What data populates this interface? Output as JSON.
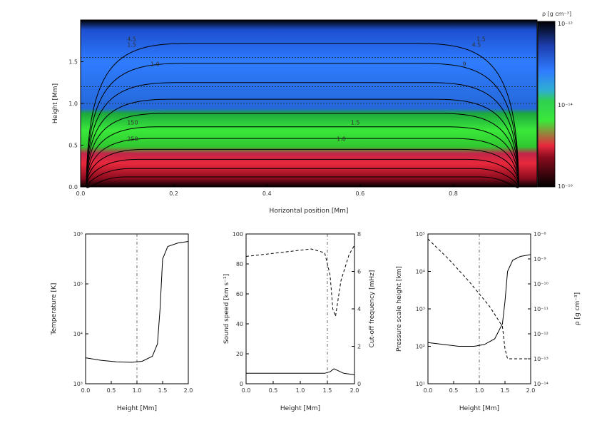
{
  "chart_data": [
    {
      "type": "heatmap",
      "id": "density-map",
      "xlabel": "Horizontal position [Mm]",
      "ylabel": "Height [Mm]",
      "xlim": [
        0.0,
        0.98
      ],
      "ylim": [
        0.0,
        2.0
      ],
      "x_ticks": [
        0.0,
        0.2,
        0.4,
        0.6,
        0.8
      ],
      "x_tick_labels": [
        "0.0",
        "0.2",
        "0.4",
        "0.6",
        "0.8"
      ],
      "y_ticks": [
        0.0,
        0.5,
        1.0,
        1.5
      ],
      "y_tick_labels": [
        "0.0",
        "0.5",
        "1.0",
        "1.5"
      ],
      "colorbar": {
        "label": "ρ [g cm⁻³]",
        "tick_labels": [
          "10⁻¹²",
          "10⁻¹⁴",
          "10⁻¹⁶"
        ],
        "colors": [
          "#000000",
          "#d81e3c",
          "#27d43a",
          "#2f6fff",
          "#000000"
        ]
      },
      "color_regions": [
        {
          "from": 0.0,
          "to": 0.35,
          "color": "red"
        },
        {
          "from": 0.35,
          "to": 1.0,
          "color": "green"
        },
        {
          "from": 1.0,
          "to": 2.0,
          "color": "blue"
        }
      ],
      "contour_labels": [
        "4.5",
        "1.5",
        "1.0",
        "150",
        "250",
        "1.5",
        "4.5",
        "9",
        "1.5",
        "1.0"
      ],
      "horizontal_dashed_levels": [
        1.55,
        1.2,
        1.0
      ]
    },
    {
      "type": "line",
      "id": "temperature",
      "xlabel": "Height [Mm]",
      "ylabel": "Temperature [K]",
      "xlim": [
        0.0,
        2.0
      ],
      "ylim_log10": [
        3,
        6
      ],
      "x_tick_labels": [
        "0.0",
        "0.5",
        "1.0",
        "1.5",
        "2.0"
      ],
      "y_tick_labels": [
        "10³",
        "10⁴",
        "10⁵",
        "10⁶"
      ],
      "vline_x": 1.0,
      "series": [
        {
          "x": [
            0.0,
            0.3,
            0.6,
            0.9,
            1.1,
            1.3,
            1.4,
            1.45,
            1.5,
            1.6,
            1.8,
            2.0
          ],
          "log10y": [
            3.52,
            3.47,
            3.44,
            3.43,
            3.45,
            3.55,
            3.8,
            4.5,
            5.5,
            5.75,
            5.82,
            5.85
          ]
        }
      ]
    },
    {
      "type": "line",
      "id": "sound-speed",
      "xlabel": "Height [Mm]",
      "ylabel": "Sound speed [km s⁻¹]",
      "y2label": "Cut-off frequency [mHz]",
      "xlim": [
        0.0,
        2.0
      ],
      "ylim": [
        0,
        100
      ],
      "y2lim": [
        0,
        8
      ],
      "x_tick_labels": [
        "0.0",
        "0.5",
        "1.0",
        "1.5",
        "2.0"
      ],
      "y_tick_labels": [
        "0",
        "20",
        "40",
        "60",
        "80",
        "100"
      ],
      "y2_tick_labels": [
        "0",
        "2",
        "4",
        "6",
        "8"
      ],
      "vline_x": 1.5,
      "series": [
        {
          "axis": "left",
          "x": [
            0.0,
            0.5,
            1.0,
            1.45,
            1.55,
            1.62,
            1.68,
            1.8,
            2.0
          ],
          "y": [
            7,
            7,
            7,
            7,
            8,
            10,
            9,
            7,
            6
          ]
        },
        {
          "axis": "right",
          "x": [
            0.0,
            0.6,
            1.2,
            1.45,
            1.55,
            1.6,
            1.65,
            1.75,
            1.9,
            2.0
          ],
          "y": [
            6.8,
            7.0,
            7.2,
            7.0,
            5.8,
            4.0,
            3.6,
            5.5,
            6.9,
            7.4
          ]
        }
      ]
    },
    {
      "type": "line",
      "id": "scale-height",
      "xlabel": "Height [Mm]",
      "ylabel": "Pressure scale height [km]",
      "y2label": "ρ [g cm⁻³]",
      "xlim": [
        0.0,
        2.0
      ],
      "ylim_log10": [
        1,
        5
      ],
      "y2lim_log10": [
        -14,
        -8
      ],
      "x_tick_labels": [
        "0.0",
        "0.5",
        "1.0",
        "1.5",
        "2.0"
      ],
      "y_tick_labels": [
        "10¹",
        "10²",
        "10³",
        "10⁴",
        "10⁵"
      ],
      "y2_tick_labels": [
        "10⁻¹⁴",
        "10⁻¹³",
        "10⁻¹²",
        "10⁻¹¹",
        "10⁻¹⁰",
        "10⁻⁹",
        "10⁻⁸"
      ],
      "vline_x": 1.0,
      "series": [
        {
          "axis": "left",
          "x": [
            0.0,
            0.3,
            0.6,
            0.9,
            1.1,
            1.3,
            1.45,
            1.5,
            1.55,
            1.65,
            1.8,
            2.0
          ],
          "log10y": [
            2.1,
            2.05,
            2.0,
            2.0,
            2.05,
            2.2,
            2.6,
            3.2,
            4.0,
            4.3,
            4.4,
            4.45
          ]
        },
        {
          "axis": "right",
          "x": [
            0.0,
            0.4,
            0.8,
            1.2,
            1.45,
            1.5,
            1.55,
            1.6,
            2.0
          ],
          "log10y": [
            -8.2,
            -9.0,
            -9.9,
            -10.9,
            -11.7,
            -12.6,
            -13.0,
            -13.0,
            -13.0
          ]
        }
      ]
    }
  ]
}
